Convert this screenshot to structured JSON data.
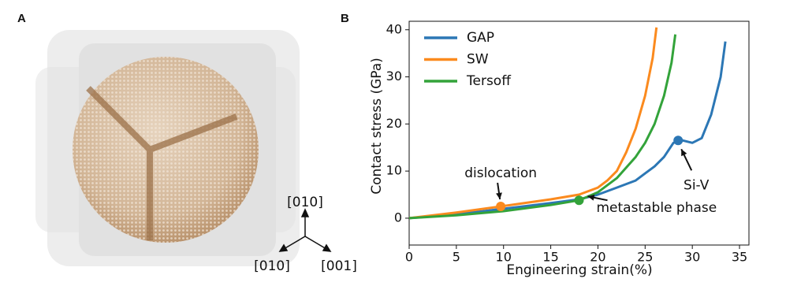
{
  "panel_a": {
    "label": "A",
    "axis_labels": [
      "[010]",
      "[010]",
      "[001]"
    ]
  },
  "panel_b": {
    "label": "B"
  },
  "chart_data": {
    "type": "line",
    "x_label": "Engineering strain(%)",
    "y_label": "Contact stress (GPa)",
    "xlim": [
      0,
      36
    ],
    "ylim": [
      -5.7,
      41.8
    ],
    "xticks": [
      0,
      5,
      10,
      15,
      20,
      25,
      30,
      35
    ],
    "yticks": [
      0,
      10,
      20,
      30,
      40
    ],
    "legend": "upper left",
    "series": [
      {
        "name": "GAP",
        "color": "#2c77b5",
        "x": [
          0,
          5,
          10,
          15,
          18,
          20,
          22,
          24,
          25,
          26,
          27,
          28,
          29,
          30,
          31,
          32,
          33,
          33.5
        ],
        "values": [
          0,
          0.8,
          2,
          3.2,
          4,
          5,
          6.5,
          8,
          9.5,
          11,
          13,
          16,
          16.5,
          16,
          17,
          22,
          30,
          37.5
        ]
      },
      {
        "name": "SW",
        "color": "#fb8a1e",
        "x": [
          0,
          5,
          9.7,
          15,
          18,
          20,
          21,
          22,
          23,
          24,
          25,
          25.8,
          26.2
        ],
        "values": [
          0,
          1.2,
          2.5,
          4,
          5,
          6.5,
          8,
          10,
          14,
          19,
          26,
          34,
          40.5
        ]
      },
      {
        "name": "Tersoff",
        "color": "#33a33a",
        "x": [
          0,
          5,
          10,
          15,
          18,
          20,
          22,
          24,
          25,
          26,
          27,
          27.8,
          28.2
        ],
        "values": [
          0,
          0.6,
          1.5,
          2.8,
          3.8,
          5.5,
          8.5,
          13,
          16,
          20,
          26,
          33,
          39
        ]
      }
    ],
    "annotations": [
      {
        "text": "dislocation",
        "x": 9.7,
        "y": 2.5,
        "color": "#fb8a1e"
      },
      {
        "text": "metastable phase",
        "x": 18,
        "y": 3.8,
        "color": "#33a33a"
      },
      {
        "text": "Si-V",
        "x": 28.5,
        "y": 16.5,
        "color": "#2c77b5"
      }
    ]
  }
}
